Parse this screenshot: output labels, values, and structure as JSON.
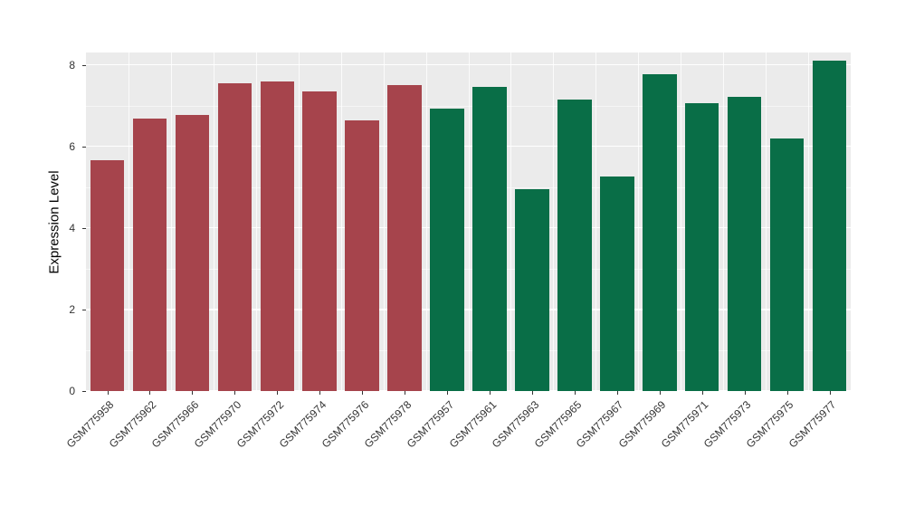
{
  "chart_data": {
    "type": "bar",
    "title": "",
    "xlabel": "",
    "ylabel": "Expression Level",
    "ylim": [
      0,
      8.3
    ],
    "yticks": [
      0,
      2,
      4,
      6,
      8
    ],
    "yminor": [
      1,
      3,
      5,
      7
    ],
    "grid": "on",
    "legend_position": "none",
    "panel_bg": "#EBEBEB",
    "grid_color": "#FFFFFF",
    "categories": [
      "GSM775958",
      "GSM775962",
      "GSM775966",
      "GSM775970",
      "GSM775972",
      "GSM775974",
      "GSM775976",
      "GSM775978",
      "GSM775957",
      "GSM775961",
      "GSM775963",
      "GSM775965",
      "GSM775967",
      "GSM775969",
      "GSM775971",
      "GSM775973",
      "GSM775975",
      "GSM775977"
    ],
    "values": [
      5.65,
      6.67,
      6.78,
      7.55,
      7.58,
      7.35,
      6.63,
      7.5,
      6.93,
      7.45,
      4.95,
      7.15,
      5.25,
      7.77,
      7.05,
      7.22,
      6.2,
      8.1
    ],
    "groups": [
      "red",
      "red",
      "red",
      "red",
      "red",
      "red",
      "red",
      "red",
      "green",
      "green",
      "green",
      "green",
      "green",
      "green",
      "green",
      "green",
      "green",
      "green"
    ],
    "colors": {
      "red": "#A6444C",
      "green": "#096E47"
    },
    "tick_color": "#333333"
  }
}
